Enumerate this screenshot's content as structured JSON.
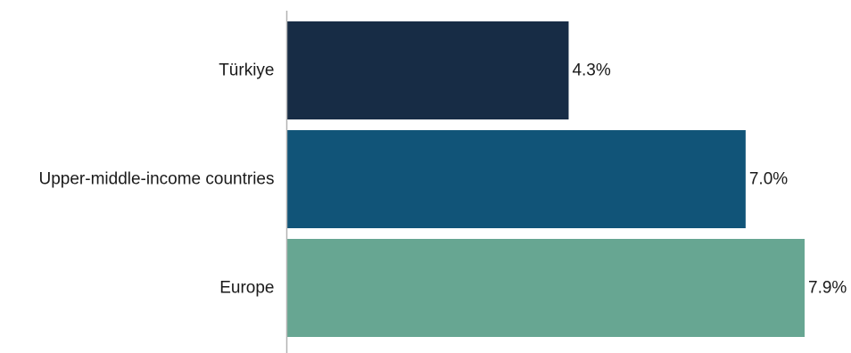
{
  "chart_data": {
    "type": "bar",
    "orientation": "horizontal",
    "title": "",
    "xlabel": "",
    "ylabel": "",
    "categories": [
      "Türkiye",
      "Upper-middle-income countries",
      "Europe"
    ],
    "values": [
      4.3,
      7.0,
      7.9
    ],
    "value_labels": [
      "4.3%",
      "7.0%",
      "7.9%"
    ],
    "xlim": [
      0,
      7.9
    ],
    "grid": false,
    "legend": "none",
    "colors": [
      "#172c45",
      "#115478",
      "#67a692"
    ],
    "axis_color": "#b3b3b3"
  }
}
